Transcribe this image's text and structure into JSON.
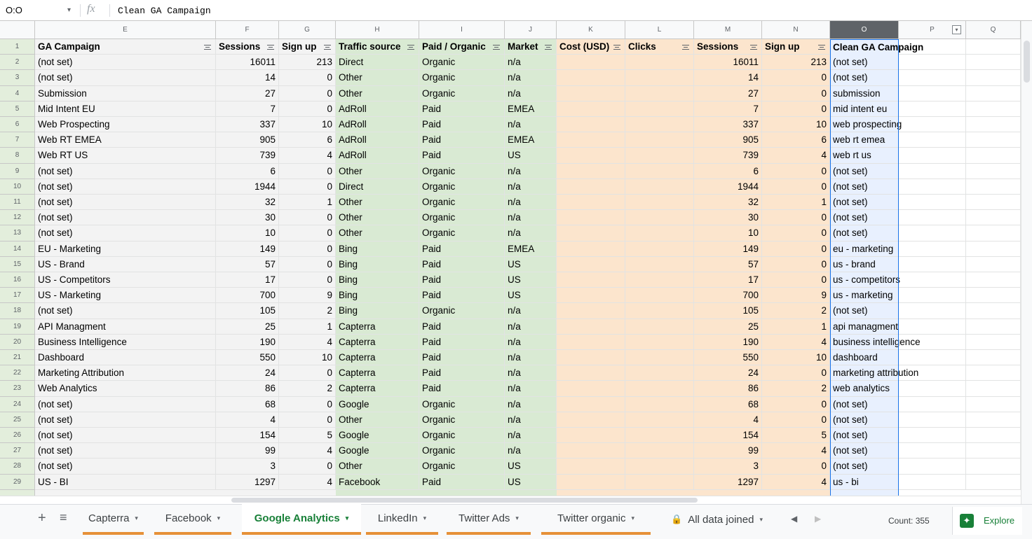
{
  "formula_bar": {
    "cell_ref": "O:O",
    "fx_icon": "fx",
    "formula": "Clean GA Campaign"
  },
  "columns": [
    "E",
    "F",
    "G",
    "H",
    "I",
    "J",
    "K",
    "L",
    "M",
    "N",
    "O",
    "P",
    "Q"
  ],
  "header": [
    "GA Campaign",
    "Sessions",
    "Sign up",
    "Traffic source",
    "Paid / Organic",
    "Market",
    "Cost (USD)",
    "Clicks",
    "Sessions",
    "Sign up",
    "Clean GA Campaign"
  ],
  "row_numbers": [
    1,
    2,
    3,
    4,
    5,
    6,
    7,
    8,
    9,
    10,
    11,
    12,
    13,
    14,
    15,
    16,
    17,
    18,
    19,
    20,
    21,
    22,
    23,
    24,
    25,
    26,
    27,
    28,
    29
  ],
  "rows": [
    [
      "(not set)",
      16011,
      213,
      "Direct",
      "Organic",
      "n/a",
      16011,
      213,
      "(not set)"
    ],
    [
      "(not set)",
      14,
      0,
      "Other",
      "Organic",
      "n/a",
      14,
      0,
      "(not set)"
    ],
    [
      "Submission",
      27,
      0,
      "Other",
      "Organic",
      "n/a",
      27,
      0,
      "submission"
    ],
    [
      "Mid Intent EU",
      7,
      0,
      "AdRoll",
      "Paid",
      "EMEA",
      7,
      0,
      "mid intent eu"
    ],
    [
      "Web Prospecting",
      337,
      10,
      "AdRoll",
      "Paid",
      "n/a",
      337,
      10,
      "web prospecting"
    ],
    [
      "Web RT EMEA",
      905,
      6,
      "AdRoll",
      "Paid",
      "EMEA",
      905,
      6,
      "web rt emea"
    ],
    [
      "Web RT US",
      739,
      4,
      "AdRoll",
      "Paid",
      "US",
      739,
      4,
      "web rt us"
    ],
    [
      "(not set)",
      6,
      0,
      "Other",
      "Organic",
      "n/a",
      6,
      0,
      "(not set)"
    ],
    [
      "(not set)",
      1944,
      0,
      "Direct",
      "Organic",
      "n/a",
      1944,
      0,
      "(not set)"
    ],
    [
      "(not set)",
      32,
      1,
      "Other",
      "Organic",
      "n/a",
      32,
      1,
      "(not set)"
    ],
    [
      "(not set)",
      30,
      0,
      "Other",
      "Organic",
      "n/a",
      30,
      0,
      "(not set)"
    ],
    [
      "(not set)",
      10,
      0,
      "Other",
      "Organic",
      "n/a",
      10,
      0,
      "(not set)"
    ],
    [
      "EU - Marketing",
      149,
      0,
      "Bing",
      "Paid",
      "EMEA",
      149,
      0,
      "eu - marketing"
    ],
    [
      "US - Brand",
      57,
      0,
      "Bing",
      "Paid",
      "US",
      57,
      0,
      "us - brand"
    ],
    [
      "US - Competitors",
      17,
      0,
      "Bing",
      "Paid",
      "US",
      17,
      0,
      "us - competitors"
    ],
    [
      "US - Marketing",
      700,
      9,
      "Bing",
      "Paid",
      "US",
      700,
      9,
      "us - marketing"
    ],
    [
      "(not set)",
      105,
      2,
      "Bing",
      "Organic",
      "n/a",
      105,
      2,
      "(not set)"
    ],
    [
      "API Managment",
      25,
      1,
      "Capterra",
      "Paid",
      "n/a",
      25,
      1,
      "api managment"
    ],
    [
      "Business Intelligence",
      190,
      4,
      "Capterra",
      "Paid",
      "n/a",
      190,
      4,
      "business intelligence"
    ],
    [
      "Dashboard",
      550,
      10,
      "Capterra",
      "Paid",
      "n/a",
      550,
      10,
      "dashboard"
    ],
    [
      "Marketing Attribution",
      24,
      0,
      "Capterra",
      "Paid",
      "n/a",
      24,
      0,
      "marketing attribution"
    ],
    [
      "Web Analytics",
      86,
      2,
      "Capterra",
      "Paid",
      "n/a",
      86,
      2,
      "web analytics"
    ],
    [
      "(not set)",
      68,
      0,
      "Google",
      "Organic",
      "n/a",
      68,
      0,
      "(not set)"
    ],
    [
      "(not set)",
      4,
      0,
      "Other",
      "Organic",
      "n/a",
      4,
      0,
      "(not set)"
    ],
    [
      "(not set)",
      154,
      5,
      "Google",
      "Organic",
      "n/a",
      154,
      5,
      "(not set)"
    ],
    [
      "(not set)",
      99,
      4,
      "Google",
      "Organic",
      "n/a",
      99,
      4,
      "(not set)"
    ],
    [
      "(not set)",
      3,
      0,
      "Other",
      "Organic",
      "US",
      3,
      0,
      "(not set)"
    ],
    [
      "US - BI",
      1297,
      4,
      "Facebook",
      "Paid",
      "US",
      1297,
      4,
      "us - bi"
    ]
  ],
  "tabs": [
    "Capterra",
    "Facebook",
    "Google Analytics",
    "LinkedIn",
    "Twitter Ads",
    "Twitter organic",
    "All data joined"
  ],
  "active_tab": 2,
  "status": {
    "count": "Count: 355",
    "explore": "Explore"
  }
}
